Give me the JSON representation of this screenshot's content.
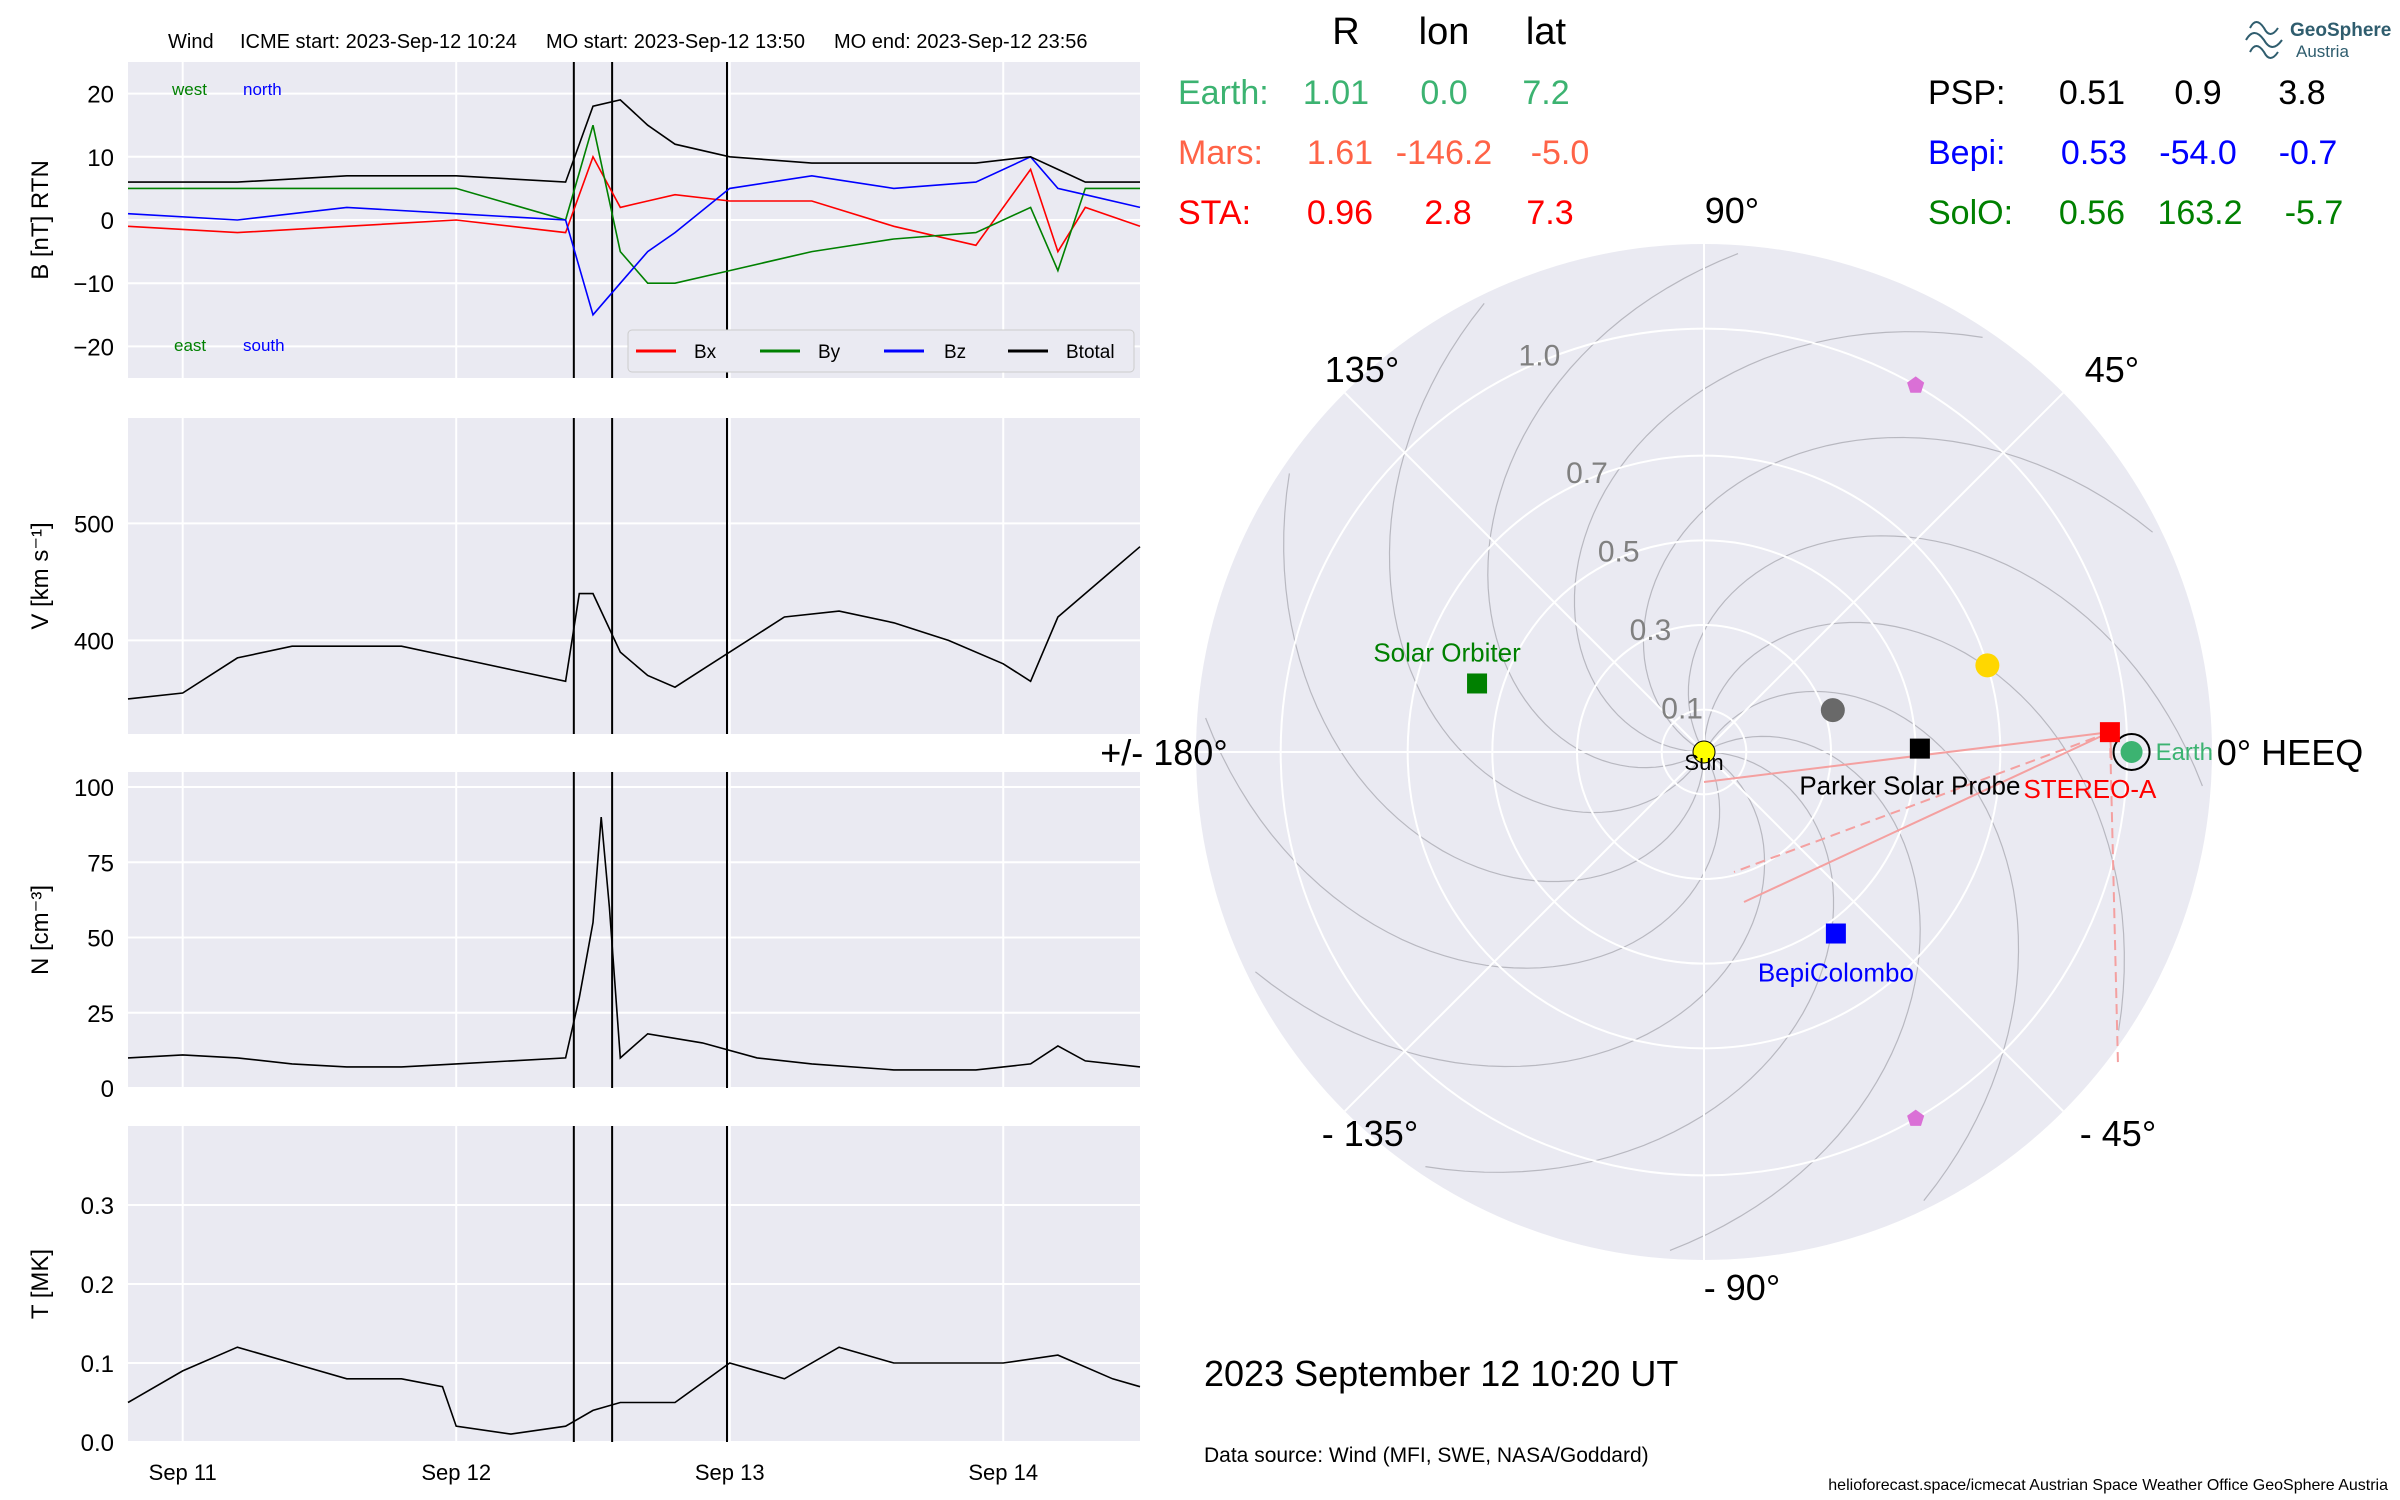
{
  "header": {
    "spacecraft": "Wind",
    "icme_start": "ICME start: 2023-Sep-12 10:24",
    "mo_start": "MO start: 2023-Sep-12 13:50",
    "mo_end": "MO end: 2023-Sep-12 23:56"
  },
  "logo": {
    "line1": "GeoSphere",
    "line2": "Austria"
  },
  "position_table": {
    "col_headers": [
      "R",
      "lon",
      "lat"
    ],
    "left_rows": [
      {
        "name": "Earth:",
        "r": "1.01",
        "lon": "0.0",
        "lat": "7.2",
        "color": "#3cb371"
      },
      {
        "name": "Mars:",
        "r": "1.61",
        "lon": "-146.2",
        "lat": "-5.0",
        "color": "#ff6347"
      },
      {
        "name": "STA:",
        "r": "0.96",
        "lon": "2.8",
        "lat": "7.3",
        "color": "#ff0000"
      }
    ],
    "right_rows": [
      {
        "name": "PSP:",
        "r": "0.51",
        "lon": "0.9",
        "lat": "3.8",
        "color": "#000000"
      },
      {
        "name": "Bepi:",
        "r": "0.53",
        "lon": "-54.0",
        "lat": "-0.7",
        "color": "#0000ff"
      },
      {
        "name": "SolO:",
        "r": "0.56",
        "lon": "163.2",
        "lat": "-5.7",
        "color": "#008000"
      }
    ]
  },
  "polar_plot": {
    "angle_labels": {
      "a0": "0° HEEQ",
      "a45": "45°",
      "a90": "90°",
      "a135": "135°",
      "a180": "+/- 180°",
      "am135": "- 135°",
      "am90": "- 90°",
      "am45": "- 45°"
    },
    "radial_ticks": [
      {
        "r": 0.1,
        "label": "0.1"
      },
      {
        "r": 0.3,
        "label": "0.3"
      },
      {
        "r": 0.5,
        "label": "0.5"
      },
      {
        "r": 0.7,
        "label": "0.7"
      },
      {
        "r": 1.0,
        "label": "1.0"
      }
    ],
    "rmax": 1.2,
    "bodies": [
      {
        "label": "Sun",
        "r": 0.0,
        "lon": 0,
        "marker": "circle",
        "color": "#ffff00",
        "label_color": "#000000"
      },
      {
        "label": "Earth",
        "r": 1.01,
        "lon": 0.0,
        "marker": "circle",
        "color": "#3cb371",
        "label_color": "#3cb371"
      },
      {
        "label": "STEREO-A",
        "r": 0.96,
        "lon": 2.8,
        "marker": "square",
        "color": "#ff0000",
        "label_color": "#ff0000"
      },
      {
        "label": "Parker Solar Probe",
        "r": 0.51,
        "lon": 0.9,
        "marker": "square",
        "color": "#000000",
        "label_color": "#000000"
      },
      {
        "label": "BepiColombo",
        "r": 0.53,
        "lon": -54.0,
        "marker": "square",
        "color": "#0000ff",
        "label_color": "#0000ff"
      },
      {
        "label": "Solar Orbiter",
        "r": 0.56,
        "lon": 163.2,
        "marker": "square",
        "color": "#008000",
        "label_color": "#008000"
      }
    ],
    "planets": [
      {
        "name": "Mercury",
        "r": 0.32,
        "lon": 18,
        "color": "#696969"
      },
      {
        "name": "Venus",
        "r": 0.7,
        "lon": 17,
        "color": "#ffd700"
      }
    ],
    "lagrange_markers": [
      {
        "r": 1.0,
        "lon": 60,
        "color": "#da70d6"
      },
      {
        "r": 1.0,
        "lon": -60,
        "color": "#da70d6"
      }
    ]
  },
  "timestamp": "2023 September 12  10:20 UT",
  "data_source": "Data source: Wind (MFI, SWE, NASA/Goddard)",
  "credits": "helioforecast.space/icmecat   Austrian Space Weather Office   GeoSphere Austria",
  "chart_data": [
    {
      "type": "line",
      "id": "B",
      "ylabel": "B [nT] RTN",
      "ylim": [
        -25,
        25
      ],
      "yticks": [
        -20,
        -10,
        0,
        10,
        20
      ],
      "xlim": [
        -0.2,
        3.5
      ],
      "annotations": {
        "west": "west",
        "north": "north",
        "east": "east",
        "south": "south"
      },
      "legend": {
        "position": "bottom-right",
        "entries": [
          "Bx",
          "By",
          "Bz",
          "Btotal"
        ]
      },
      "series": [
        {
          "name": "Bx",
          "color": "#ff0000",
          "x": [
            -0.2,
            0.2,
            0.6,
            1.0,
            1.4,
            1.5,
            1.6,
            1.7,
            1.8,
            2.0,
            2.3,
            2.6,
            2.9,
            3.1,
            3.2,
            3.3,
            3.5
          ],
          "y": [
            -1,
            -2,
            -1,
            0,
            -2,
            10,
            2,
            3,
            4,
            3,
            3,
            -1,
            -4,
            8,
            -5,
            2,
            -1
          ]
        },
        {
          "name": "By",
          "color": "#008000",
          "x": [
            -0.2,
            0.2,
            0.6,
            1.0,
            1.4,
            1.5,
            1.6,
            1.7,
            1.8,
            2.0,
            2.3,
            2.6,
            2.9,
            3.1,
            3.2,
            3.3,
            3.5
          ],
          "y": [
            5,
            5,
            5,
            5,
            0,
            15,
            -5,
            -10,
            -10,
            -8,
            -5,
            -3,
            -2,
            2,
            -8,
            5,
            5
          ]
        },
        {
          "name": "Bz",
          "color": "#0000ff",
          "x": [
            -0.2,
            0.2,
            0.6,
            1.0,
            1.4,
            1.5,
            1.6,
            1.7,
            1.8,
            2.0,
            2.3,
            2.6,
            2.9,
            3.1,
            3.2,
            3.3,
            3.5
          ],
          "y": [
            1,
            0,
            2,
            1,
            0,
            -15,
            -10,
            -5,
            -2,
            5,
            7,
            5,
            6,
            10,
            5,
            4,
            2
          ]
        },
        {
          "name": "Btotal",
          "color": "#000000",
          "x": [
            -0.2,
            0.2,
            0.6,
            1.0,
            1.4,
            1.5,
            1.6,
            1.7,
            1.8,
            2.0,
            2.3,
            2.6,
            2.9,
            3.1,
            3.2,
            3.3,
            3.5
          ],
          "y": [
            6,
            6,
            7,
            7,
            6,
            18,
            19,
            15,
            12,
            10,
            9,
            9,
            9,
            10,
            8,
            6,
            6
          ]
        }
      ]
    },
    {
      "type": "line",
      "id": "V",
      "ylabel": "V [km s⁻¹]",
      "ylim": [
        320,
        590
      ],
      "yticks": [
        400,
        500
      ],
      "xlim": [
        -0.2,
        3.5
      ],
      "series": [
        {
          "name": "V",
          "color": "#000000",
          "x": [
            -0.2,
            0.0,
            0.2,
            0.4,
            0.6,
            0.8,
            1.0,
            1.2,
            1.4,
            1.45,
            1.5,
            1.6,
            1.7,
            1.8,
            1.9,
            2.0,
            2.2,
            2.4,
            2.6,
            2.8,
            3.0,
            3.1,
            3.2,
            3.4,
            3.5
          ],
          "y": [
            350,
            355,
            385,
            395,
            395,
            395,
            385,
            375,
            365,
            440,
            440,
            390,
            370,
            360,
            375,
            390,
            420,
            425,
            415,
            400,
            380,
            365,
            420,
            460,
            480
          ]
        }
      ]
    },
    {
      "type": "line",
      "id": "N",
      "ylabel": "N [cm⁻³]",
      "ylim": [
        0,
        105
      ],
      "yticks": [
        0,
        25,
        50,
        75,
        100
      ],
      "xlim": [
        -0.2,
        3.5
      ],
      "series": [
        {
          "name": "N",
          "color": "#000000",
          "x": [
            -0.2,
            0.0,
            0.2,
            0.4,
            0.6,
            0.8,
            1.0,
            1.2,
            1.4,
            1.45,
            1.5,
            1.53,
            1.56,
            1.6,
            1.7,
            1.9,
            2.1,
            2.3,
            2.6,
            2.9,
            3.1,
            3.2,
            3.3,
            3.5
          ],
          "y": [
            10,
            11,
            10,
            8,
            7,
            7,
            8,
            9,
            10,
            30,
            55,
            90,
            60,
            10,
            18,
            15,
            10,
            8,
            6,
            6,
            8,
            14,
            9,
            7
          ]
        }
      ]
    },
    {
      "type": "line",
      "id": "T",
      "ylabel": "T [MK]",
      "ylim": [
        0,
        0.4
      ],
      "yticks": [
        0.0,
        0.1,
        0.2,
        0.3
      ],
      "xlim": [
        -0.2,
        3.5
      ],
      "xticks": [
        {
          "x": 0,
          "label": "Sep 11"
        },
        {
          "x": 1,
          "label": "Sep 12"
        },
        {
          "x": 2,
          "label": "Sep 13"
        },
        {
          "x": 3,
          "label": "Sep 14"
        }
      ],
      "series": [
        {
          "name": "T",
          "color": "#000000",
          "x": [
            -0.2,
            0.0,
            0.2,
            0.4,
            0.6,
            0.8,
            0.95,
            1.0,
            1.2,
            1.4,
            1.5,
            1.6,
            1.8,
            2.0,
            2.2,
            2.4,
            2.6,
            2.8,
            3.0,
            3.2,
            3.4,
            3.5
          ],
          "y": [
            0.05,
            0.09,
            0.12,
            0.1,
            0.08,
            0.08,
            0.07,
            0.02,
            0.01,
            0.02,
            0.04,
            0.05,
            0.05,
            0.1,
            0.08,
            0.12,
            0.1,
            0.1,
            0.1,
            0.11,
            0.08,
            0.07
          ]
        }
      ]
    }
  ],
  "event_lines": [
    1.43,
    1.57,
    1.99
  ]
}
